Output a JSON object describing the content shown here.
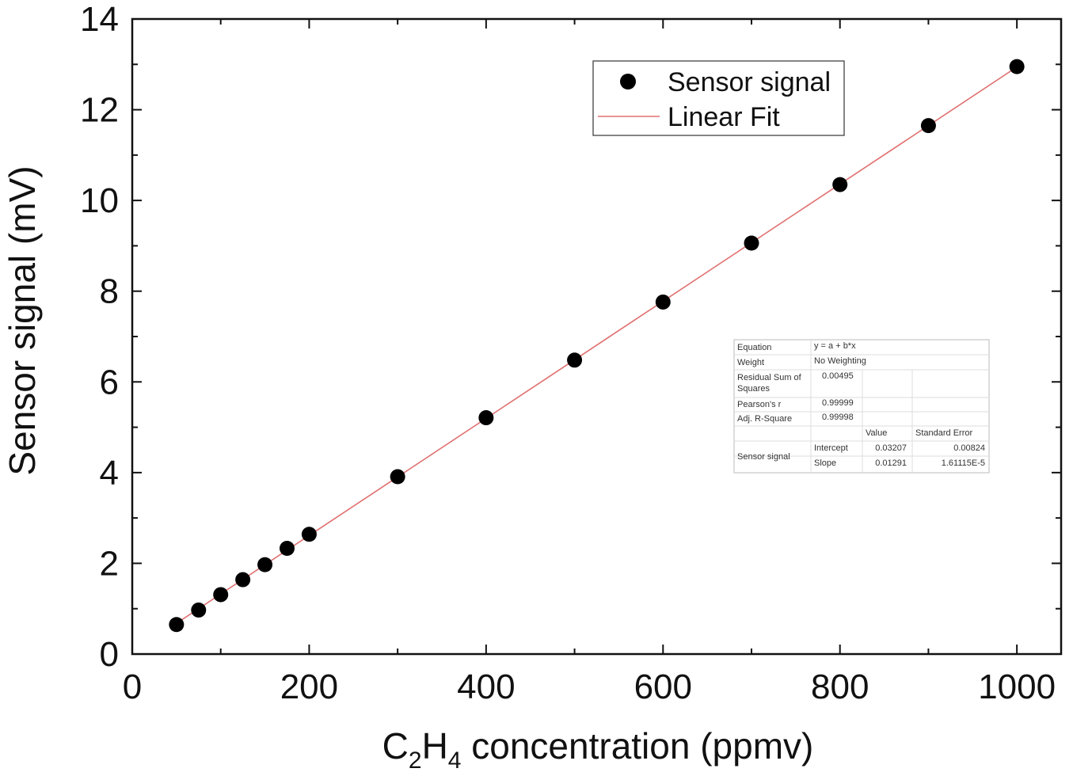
{
  "chart_data": {
    "type": "scatter",
    "xlabel_parts": [
      "C",
      "2",
      "H",
      "4",
      " concentration (ppmv)"
    ],
    "ylabel": "Sensor signal (mV)",
    "xlim": [
      0,
      1050
    ],
    "ylim": [
      0,
      14
    ],
    "xticks": [
      0,
      200,
      400,
      600,
      800,
      1000
    ],
    "yticks": [
      0,
      2,
      4,
      6,
      8,
      10,
      12,
      14
    ],
    "grid": false,
    "legend_position": "top-right",
    "series": [
      {
        "name": "Sensor signal",
        "kind": "points",
        "color": "#000000",
        "x": [
          50,
          75,
          100,
          125,
          150,
          175,
          200,
          300,
          400,
          500,
          600,
          700,
          800,
          900,
          1000
        ],
        "y": [
          0.65,
          0.97,
          1.31,
          1.64,
          1.97,
          2.33,
          2.64,
          3.91,
          5.21,
          6.48,
          7.76,
          9.06,
          10.35,
          11.65,
          12.95
        ]
      },
      {
        "name": "Linear Fit",
        "kind": "line",
        "color": "#e07070",
        "intercept": 0.03207,
        "slope": 0.01291,
        "x_range": [
          50,
          1000
        ]
      }
    ],
    "fit_table": {
      "rows": [
        [
          "Equation",
          "y = a + b*x"
        ],
        [
          "Weight",
          "No Weighting"
        ],
        [
          "Residual Sum of Squares",
          "0.00495"
        ],
        [
          "Pearson's r",
          "0.99999"
        ],
        [
          "Adj. R-Square",
          "0.99998"
        ]
      ],
      "col_headers": [
        "Value",
        "Standard Error"
      ],
      "group_label": "Sensor signal",
      "params": [
        [
          "Intercept",
          "0.03207",
          "0.00824"
        ],
        [
          "Slope",
          "0.01291",
          "1.61115E-5"
        ]
      ]
    }
  }
}
